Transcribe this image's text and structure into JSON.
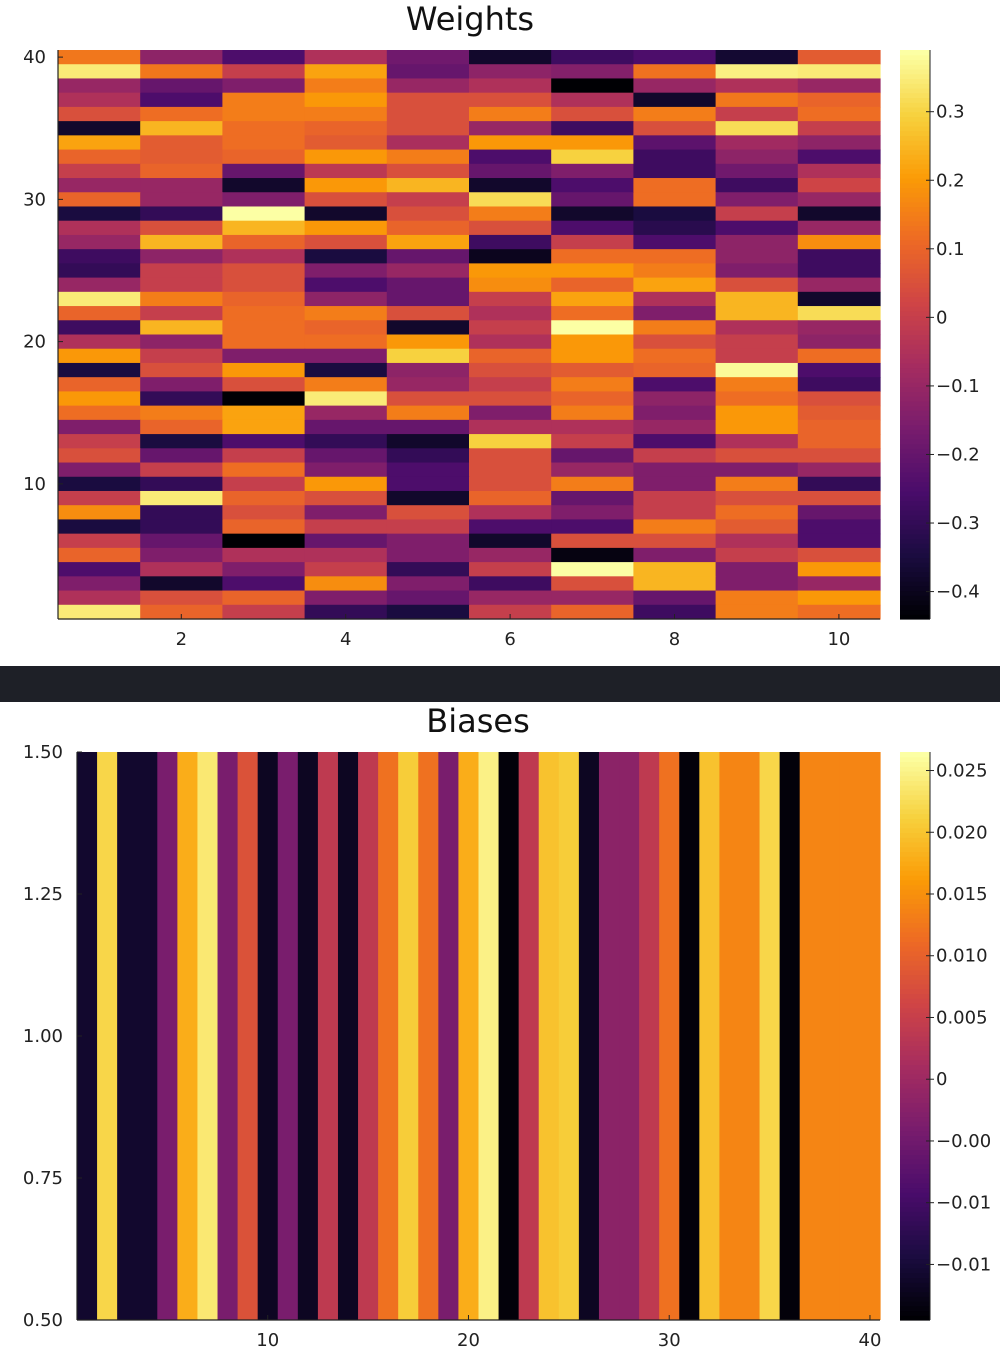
{
  "colormap": [
    "#000004",
    "#1b0c41",
    "#4a0c6b",
    "#781c6d",
    "#a52c60",
    "#cf4446",
    "#ed6925",
    "#fb9b06",
    "#f7d13d",
    "#fcffa4"
  ],
  "divider_color": "#1e2027",
  "chart_data": [
    {
      "type": "heatmap",
      "title": "Weights",
      "xlabel": "",
      "ylabel": "",
      "ncols": 10,
      "nrows": 40,
      "xlim": [
        0.5,
        10.5
      ],
      "ylim": [
        0.5,
        40.5
      ],
      "xticks": [
        2,
        4,
        6,
        8,
        10
      ],
      "yticks": [
        10,
        20,
        30,
        40
      ],
      "clim": [
        -0.44,
        0.39
      ],
      "colorbar_ticks": [
        {
          "value": -0.4,
          "label": "−0.4"
        },
        {
          "value": -0.3,
          "label": "−0.3"
        },
        {
          "value": -0.2,
          "label": "−0.2"
        },
        {
          "value": -0.1,
          "label": "−0.1"
        },
        {
          "value": 0,
          "label": "0"
        },
        {
          "value": 0.1,
          "label": "0.1"
        },
        {
          "value": 0.2,
          "label": "0.2"
        },
        {
          "value": 0.3,
          "label": "0.3"
        }
      ],
      "values": [
        [
          0.14,
          -0.12,
          -0.25,
          -0.05,
          -0.18,
          -0.38,
          -0.28,
          -0.25,
          -0.37,
          0.08
        ],
        [
          0.35,
          0.14,
          0.0,
          0.22,
          -0.2,
          -0.12,
          -0.14,
          0.13,
          0.36,
          0.35
        ],
        [
          -0.1,
          -0.2,
          -0.15,
          0.15,
          -0.1,
          -0.05,
          -0.45,
          -0.1,
          -0.05,
          -0.1
        ],
        [
          -0.05,
          -0.25,
          0.15,
          0.2,
          0.05,
          0.05,
          -0.05,
          -0.38,
          0.14,
          0.1
        ],
        [
          0.05,
          0.12,
          0.15,
          0.15,
          0.05,
          0.15,
          0.05,
          0.15,
          0.0,
          0.12
        ],
        [
          -0.38,
          0.25,
          0.12,
          0.1,
          0.05,
          -0.1,
          -0.28,
          0.05,
          0.32,
          0.0
        ],
        [
          0.22,
          0.08,
          0.12,
          0.08,
          -0.06,
          0.2,
          0.2,
          -0.22,
          -0.08,
          -0.12
        ],
        [
          0.1,
          0.08,
          0.1,
          0.2,
          0.15,
          -0.25,
          0.3,
          -0.28,
          -0.12,
          -0.25
        ],
        [
          0.0,
          0.1,
          -0.2,
          -0.02,
          0.05,
          -0.2,
          -0.15,
          -0.28,
          -0.18,
          -0.05
        ],
        [
          -0.1,
          -0.1,
          -0.38,
          0.2,
          0.25,
          -0.38,
          -0.25,
          0.12,
          -0.28,
          0.02
        ],
        [
          0.1,
          -0.1,
          -0.15,
          0.05,
          0.0,
          0.32,
          -0.2,
          0.12,
          -0.15,
          -0.1
        ],
        [
          -0.35,
          -0.3,
          0.4,
          -0.38,
          0.05,
          0.15,
          -0.38,
          -0.35,
          0.0,
          -0.38
        ],
        [
          -0.05,
          0.05,
          0.25,
          0.2,
          0.1,
          0.05,
          -0.25,
          -0.32,
          -0.25,
          -0.1
        ],
        [
          -0.1,
          0.25,
          0.1,
          0.05,
          0.22,
          -0.28,
          0.0,
          -0.25,
          -0.12,
          0.18
        ],
        [
          -0.28,
          -0.12,
          -0.05,
          -0.35,
          -0.2,
          -0.4,
          0.12,
          0.12,
          -0.12,
          -0.28
        ],
        [
          -0.3,
          0.0,
          0.05,
          -0.15,
          -0.1,
          0.2,
          0.2,
          0.15,
          -0.15,
          -0.28
        ],
        [
          -0.1,
          0.0,
          0.05,
          -0.25,
          -0.2,
          0.18,
          0.1,
          0.22,
          0.05,
          -0.1
        ],
        [
          0.35,
          0.15,
          0.1,
          -0.12,
          -0.2,
          0.0,
          0.22,
          -0.05,
          0.25,
          -0.38
        ],
        [
          0.1,
          0.0,
          0.12,
          0.15,
          0.05,
          -0.05,
          0.12,
          -0.15,
          0.25,
          0.32
        ],
        [
          -0.28,
          0.25,
          0.12,
          0.1,
          -0.38,
          0.0,
          0.4,
          0.15,
          -0.05,
          -0.1
        ],
        [
          -0.05,
          -0.12,
          0.12,
          0.12,
          0.2,
          -0.05,
          0.2,
          0.05,
          0.0,
          -0.12
        ],
        [
          0.2,
          0.0,
          -0.15,
          -0.15,
          0.3,
          0.1,
          0.2,
          0.12,
          0.0,
          0.12
        ],
        [
          -0.35,
          0.05,
          0.2,
          -0.35,
          -0.12,
          0.05,
          0.08,
          0.1,
          0.38,
          -0.25
        ],
        [
          0.1,
          -0.15,
          0.05,
          0.15,
          -0.1,
          0.0,
          0.15,
          -0.25,
          0.15,
          -0.28
        ],
        [
          0.2,
          -0.3,
          -0.45,
          0.35,
          0.05,
          0.05,
          0.1,
          -0.12,
          0.12,
          0.05
        ],
        [
          0.12,
          0.15,
          0.22,
          -0.1,
          0.15,
          -0.15,
          0.15,
          -0.15,
          0.2,
          0.08
        ],
        [
          -0.15,
          0.1,
          0.22,
          -0.2,
          -0.2,
          -0.05,
          -0.05,
          -0.1,
          0.2,
          0.1
        ],
        [
          0.0,
          -0.35,
          -0.25,
          -0.3,
          -0.38,
          0.3,
          0.0,
          -0.25,
          -0.05,
          0.1
        ],
        [
          0.05,
          -0.2,
          0.0,
          -0.2,
          -0.3,
          0.05,
          -0.2,
          0.0,
          0.05,
          0.05
        ],
        [
          -0.15,
          0.0,
          0.12,
          -0.15,
          -0.25,
          0.05,
          -0.1,
          -0.15,
          -0.15,
          -0.1
        ],
        [
          -0.35,
          -0.3,
          0.0,
          0.2,
          -0.25,
          0.05,
          0.15,
          -0.15,
          0.15,
          -0.3
        ],
        [
          0.0,
          0.35,
          0.1,
          0.05,
          -0.38,
          0.1,
          -0.2,
          0.0,
          0.05,
          0.05
        ],
        [
          0.18,
          -0.3,
          0.05,
          -0.15,
          0.05,
          -0.05,
          -0.15,
          0.0,
          0.12,
          -0.2
        ],
        [
          -0.35,
          -0.3,
          0.1,
          0.0,
          0.0,
          -0.25,
          -0.25,
          0.15,
          0.08,
          -0.25
        ],
        [
          0.0,
          -0.2,
          -0.45,
          -0.2,
          -0.15,
          -0.38,
          0.05,
          0.05,
          -0.05,
          -0.25
        ],
        [
          0.1,
          -0.15,
          -0.05,
          -0.05,
          -0.15,
          -0.1,
          -0.42,
          -0.15,
          0.0,
          0.05
        ],
        [
          -0.25,
          -0.05,
          -0.15,
          0.0,
          -0.3,
          0.0,
          0.4,
          0.25,
          -0.15,
          0.2
        ],
        [
          -0.15,
          -0.38,
          -0.25,
          0.18,
          -0.15,
          -0.28,
          0.05,
          0.25,
          -0.15,
          -0.1
        ],
        [
          -0.05,
          0.05,
          0.1,
          -0.15,
          -0.2,
          -0.1,
          -0.1,
          -0.2,
          0.15,
          0.2
        ],
        [
          0.35,
          0.1,
          0.0,
          -0.3,
          -0.35,
          0.0,
          0.1,
          -0.28,
          0.15,
          0.12
        ]
      ],
      "values_row_order": "top-to-bottom (row 40 first)"
    },
    {
      "type": "heatmap",
      "title": "Biases",
      "xlabel": "",
      "ylabel": "",
      "ncols": 40,
      "nrows": 1,
      "xlim": [
        0.5,
        40.5
      ],
      "ylim": [
        0.5,
        1.5
      ],
      "xticks": [
        10,
        20,
        30,
        40
      ],
      "yticks": [
        {
          "value": 0.5,
          "label": "0.50"
        },
        {
          "value": 0.75,
          "label": "0.75"
        },
        {
          "value": 1.0,
          "label": "1.00"
        },
        {
          "value": 1.25,
          "label": "1.25"
        },
        {
          "value": 1.5,
          "label": "1.50"
        }
      ],
      "clim": [
        -0.0195,
        0.0265
      ],
      "colorbar_ticks": [
        {
          "value": -0.015,
          "label": "−0.01"
        },
        {
          "value": -0.01,
          "label": "−0.01"
        },
        {
          "value": -0.005,
          "label": "−0.00"
        },
        {
          "value": 0,
          "label": "0"
        },
        {
          "value": 0.005,
          "label": "0.005"
        },
        {
          "value": 0.01,
          "label": "0.010"
        },
        {
          "value": 0.015,
          "label": "0.015"
        },
        {
          "value": 0.02,
          "label": "0.020"
        },
        {
          "value": 0.025,
          "label": "0.025"
        }
      ],
      "values": [
        -0.016,
        0.022,
        -0.016,
        -0.016,
        -0.004,
        0.018,
        0.024,
        -0.004,
        0.008,
        -0.017,
        -0.004,
        -0.017,
        0.004,
        -0.017,
        0.004,
        0.012,
        0.021,
        0.012,
        -0.004,
        0.018,
        0.025,
        -0.019,
        0.004,
        0.02,
        0.021,
        -0.017,
        -0.002,
        -0.002,
        0.004,
        0.012,
        -0.019,
        0.02,
        0.014,
        0.014,
        0.022,
        -0.019,
        0.014,
        0.014,
        0.014,
        0.014
      ]
    }
  ]
}
